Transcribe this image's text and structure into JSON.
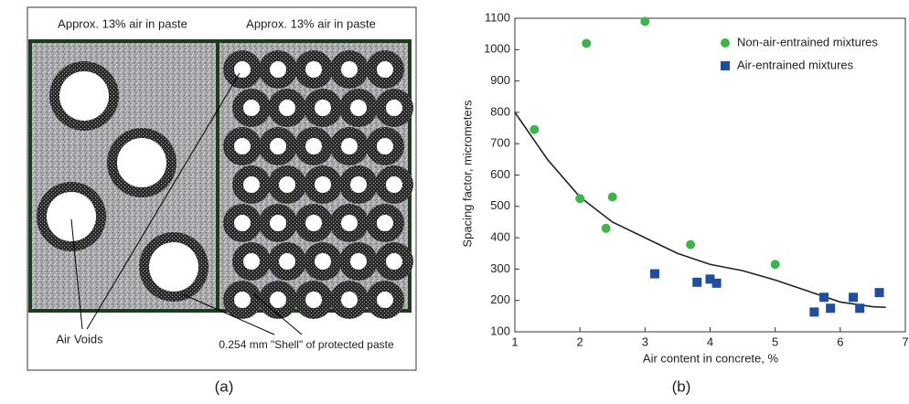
{
  "diagram": {
    "left_label": "Approx. 13% air in paste",
    "right_label": "Approx. 13% air in paste",
    "voids_label": "Air Voids",
    "shell_label": "0.254 mm \"Shell\" of protected paste",
    "panel_label": "(a)"
  },
  "chart_data": {
    "type": "scatter",
    "panel_label": "(b)",
    "xlabel": "Air content in concrete, %",
    "ylabel": "Spacing factor, micrometers",
    "xlim": [
      1,
      7
    ],
    "ylim": [
      100,
      1100
    ],
    "xticks": [
      1,
      2,
      3,
      4,
      5,
      6,
      7
    ],
    "yticks": [
      100,
      200,
      300,
      400,
      500,
      600,
      700,
      800,
      900,
      1000,
      1100
    ],
    "legend": "top-right",
    "series": [
      {
        "name": "Non-air-entrained mixtures",
        "color": "#3db54a",
        "marker": "circle",
        "x": [
          1.3,
          2.0,
          2.1,
          2.4,
          2.5,
          3.0,
          3.7,
          5.0
        ],
        "values": [
          745,
          525,
          1020,
          430,
          530,
          1090,
          378,
          315
        ]
      },
      {
        "name": "Air-entrained mixtures",
        "color": "#1f4e9c",
        "marker": "square",
        "x": [
          3.15,
          3.8,
          4.0,
          4.1,
          5.6,
          5.75,
          5.85,
          6.2,
          6.3,
          6.6
        ],
        "values": [
          285,
          258,
          268,
          255,
          163,
          210,
          175,
          210,
          175,
          225
        ]
      }
    ],
    "trend_line": {
      "color": "#222222",
      "x": [
        1,
        1.5,
        2,
        2.5,
        3,
        3.5,
        4,
        4.5,
        5,
        5.5,
        6,
        6.5,
        6.7
      ],
      "values": [
        800,
        650,
        530,
        450,
        400,
        350,
        315,
        295,
        265,
        230,
        195,
        180,
        178
      ]
    }
  }
}
